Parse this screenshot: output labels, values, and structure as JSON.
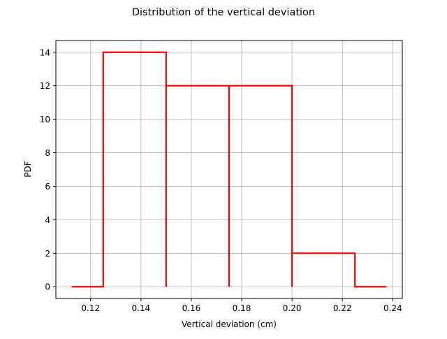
{
  "chart_data": {
    "type": "line",
    "title": "Distribution of the vertical deviation",
    "xlabel": "Vertical deviation (cm)",
    "ylabel": "PDF",
    "xlim": [
      0.1062,
      0.2438
    ],
    "ylim": [
      -0.7,
      14.7
    ],
    "xticks": [
      0.12,
      0.14,
      0.16,
      0.18,
      0.2,
      0.22,
      0.24
    ],
    "xtick_labels": [
      "0.12",
      "0.14",
      "0.16",
      "0.18",
      "0.20",
      "0.22",
      "0.24"
    ],
    "yticks": [
      0,
      2,
      4,
      6,
      8,
      10,
      12,
      14
    ],
    "ytick_labels": [
      "0",
      "2",
      "4",
      "6",
      "8",
      "10",
      "12",
      "14"
    ],
    "grid": true,
    "series": [
      {
        "color": "#ff0000",
        "x": [
          0.1125,
          0.125,
          0.125,
          0.15,
          0.15,
          0.15,
          0.175,
          0.175,
          0.175,
          0.2,
          0.2,
          0.2,
          0.225,
          0.225,
          0.2375
        ],
        "y": [
          0,
          0,
          14,
          14,
          0,
          12,
          12,
          0,
          12,
          12,
          0,
          2,
          2,
          0,
          0
        ]
      }
    ]
  }
}
